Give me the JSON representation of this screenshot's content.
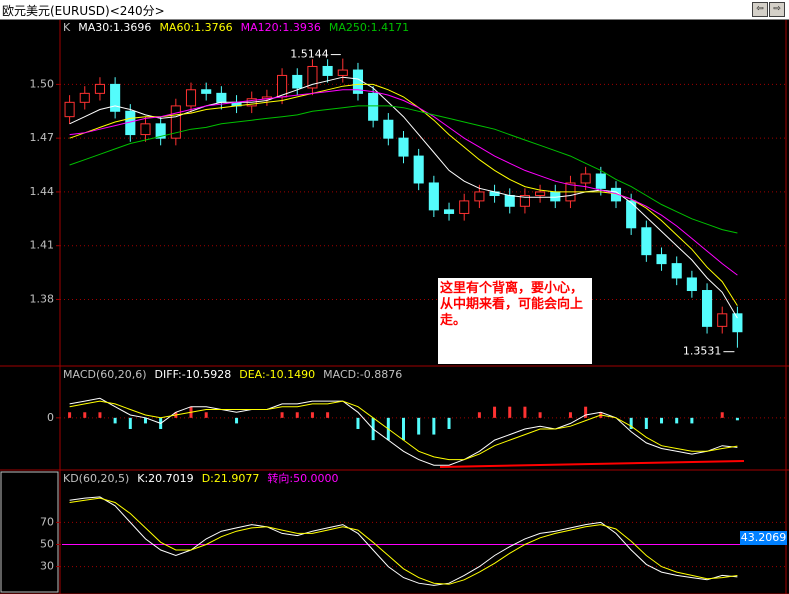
{
  "window": {
    "title": "欧元美元(EURUSD)<240分>"
  },
  "chart_data": [
    {
      "type": "candlestick",
      "name": "K",
      "up_color": "#ff3232",
      "down_color": "#54fcfc",
      "open": [
        1.482,
        1.49,
        1.495,
        1.5,
        1.485,
        1.472,
        1.478,
        1.47,
        1.488,
        1.497,
        1.495,
        1.49,
        1.488,
        1.492,
        1.493,
        1.505,
        1.498,
        1.51,
        1.505,
        1.508,
        1.495,
        1.48,
        1.47,
        1.46,
        1.445,
        1.43,
        1.428,
        1.435,
        1.44,
        1.438,
        1.432,
        1.438,
        1.44,
        1.435,
        1.445,
        1.45,
        1.442,
        1.435,
        1.42,
        1.405,
        1.4,
        1.392,
        1.385,
        1.365,
        1.372
      ],
      "high": [
        1.494,
        1.499,
        1.504,
        1.504,
        1.489,
        1.482,
        1.482,
        1.492,
        1.501,
        1.501,
        1.499,
        1.494,
        1.496,
        1.497,
        1.509,
        1.509,
        1.514,
        1.514,
        1.5144,
        1.512,
        1.499,
        1.484,
        1.474,
        1.464,
        1.449,
        1.434,
        1.439,
        1.444,
        1.444,
        1.442,
        1.442,
        1.444,
        1.444,
        1.449,
        1.454,
        1.454,
        1.446,
        1.439,
        1.424,
        1.409,
        1.404,
        1.396,
        1.389,
        1.376,
        1.376
      ],
      "low": [
        1.478,
        1.486,
        1.491,
        1.481,
        1.468,
        1.468,
        1.466,
        1.466,
        1.484,
        1.491,
        1.486,
        1.484,
        1.484,
        1.488,
        1.489,
        1.494,
        1.494,
        1.501,
        1.501,
        1.491,
        1.476,
        1.466,
        1.456,
        1.441,
        1.426,
        1.424,
        1.424,
        1.431,
        1.434,
        1.428,
        1.428,
        1.434,
        1.431,
        1.431,
        1.441,
        1.438,
        1.431,
        1.416,
        1.401,
        1.396,
        1.388,
        1.381,
        1.361,
        1.361,
        1.3531
      ],
      "close": [
        1.49,
        1.495,
        1.5,
        1.485,
        1.472,
        1.478,
        1.47,
        1.488,
        1.497,
        1.495,
        1.49,
        1.488,
        1.492,
        1.493,
        1.505,
        1.498,
        1.51,
        1.505,
        1.508,
        1.495,
        1.48,
        1.47,
        1.46,
        1.445,
        1.43,
        1.428,
        1.435,
        1.44,
        1.438,
        1.432,
        1.438,
        1.44,
        1.435,
        1.445,
        1.45,
        1.442,
        1.435,
        1.42,
        1.405,
        1.4,
        1.392,
        1.385,
        1.365,
        1.372,
        1.362
      ],
      "series": [
        {
          "name": "MA30:1.3696",
          "color": "#ffffff",
          "values": [
            1.478,
            1.482,
            1.486,
            1.488,
            1.486,
            1.483,
            1.481,
            1.482,
            1.485,
            1.488,
            1.49,
            1.49,
            1.49,
            1.491,
            1.494,
            1.497,
            1.5,
            1.502,
            1.504,
            1.503,
            1.498,
            1.49,
            1.482,
            1.472,
            1.462,
            1.452,
            1.446,
            1.442,
            1.44,
            1.438,
            1.437,
            1.437,
            1.437,
            1.438,
            1.44,
            1.441,
            1.44,
            1.434,
            1.426,
            1.418,
            1.41,
            1.402,
            1.392,
            1.384,
            1.3696
          ]
        },
        {
          "name": "MA60:1.3766",
          "color": "#ffff00",
          "values": [
            1.47,
            1.473,
            1.476,
            1.479,
            1.481,
            1.482,
            1.482,
            1.483,
            1.484,
            1.486,
            1.487,
            1.488,
            1.489,
            1.49,
            1.491,
            1.493,
            1.495,
            1.497,
            1.499,
            1.5,
            1.5,
            1.497,
            1.493,
            1.487,
            1.48,
            1.472,
            1.465,
            1.458,
            1.452,
            1.447,
            1.443,
            1.441,
            1.44,
            1.44,
            1.44,
            1.44,
            1.439,
            1.436,
            1.431,
            1.424,
            1.416,
            1.408,
            1.398,
            1.39,
            1.3766
          ]
        },
        {
          "name": "MA120:1.3936",
          "color": "#ff00ff",
          "values": [
            1.472,
            1.473,
            1.475,
            1.477,
            1.479,
            1.481,
            1.482,
            1.484,
            1.486,
            1.488,
            1.489,
            1.49,
            1.491,
            1.492,
            1.493,
            1.494,
            1.495,
            1.496,
            1.497,
            1.497,
            1.496,
            1.494,
            1.491,
            1.487,
            1.482,
            1.476,
            1.47,
            1.465,
            1.46,
            1.456,
            1.452,
            1.449,
            1.446,
            1.444,
            1.443,
            1.441,
            1.439,
            1.436,
            1.432,
            1.427,
            1.421,
            1.414,
            1.407,
            1.4,
            1.3936
          ]
        },
        {
          "name": "MA250:1.4171",
          "color": "#00c000",
          "values": [
            1.455,
            1.458,
            1.461,
            1.464,
            1.467,
            1.469,
            1.471,
            1.473,
            1.475,
            1.476,
            1.478,
            1.479,
            1.48,
            1.481,
            1.482,
            1.483,
            1.485,
            1.486,
            1.487,
            1.488,
            1.488,
            1.488,
            1.487,
            1.485,
            1.483,
            1.481,
            1.479,
            1.477,
            1.475,
            1.472,
            1.469,
            1.466,
            1.463,
            1.46,
            1.456,
            1.452,
            1.447,
            1.443,
            1.438,
            1.433,
            1.429,
            1.425,
            1.422,
            1.419,
            1.4171
          ]
        }
      ],
      "high_label": "1.5144",
      "low_label": "1.3531",
      "note": "这里有个背离，要小心，从中期来看，可能会向上走。",
      "ylim": [
        1.344,
        1.527
      ],
      "yticks": [
        1.38,
        1.41,
        1.44,
        1.47,
        {
          "value": 1.5,
          "label": "1.50"
        }
      ],
      "grid": true
    },
    {
      "type": "macd",
      "title": "MACD(60,20,6)",
      "series": [
        {
          "name": "DIFF:-10.5928",
          "color": "#ffffff",
          "values": [
            5,
            6,
            7,
            4,
            1,
            0,
            -2,
            2,
            4,
            4,
            3,
            2,
            3,
            3,
            5,
            5,
            6,
            6,
            6,
            2,
            -4,
            -8,
            -12,
            -15,
            -17,
            -17,
            -15,
            -12,
            -8,
            -6,
            -4,
            -3,
            -4,
            -2,
            1,
            2,
            0,
            -5,
            -9,
            -11,
            -12,
            -13,
            -12,
            -10,
            -10.5928
          ]
        },
        {
          "name": "DEA:-10.1490",
          "color": "#ffff00",
          "values": [
            4,
            5,
            6,
            5,
            3,
            1,
            0,
            1,
            2,
            3,
            3,
            3,
            3,
            3,
            4,
            4,
            5,
            5,
            6,
            4,
            0,
            -4,
            -8,
            -12,
            -14,
            -15,
            -15,
            -13,
            -10,
            -8,
            -6,
            -4,
            -4,
            -3,
            -1,
            1,
            0,
            -3,
            -7,
            -10,
            -11,
            -12,
            -12,
            -11,
            -10.149
          ]
        }
      ],
      "histogram": {
        "name": "MACD:-0.8876",
        "up_color": "#ff3232",
        "down_color": "#54fcfc",
        "values": [
          2,
          2,
          2,
          -2,
          -4,
          -2,
          -4,
          2,
          4,
          2,
          0,
          -2,
          0,
          0,
          2,
          2,
          2,
          2,
          0,
          -4,
          -8,
          -8,
          -8,
          -6,
          -6,
          -4,
          0,
          2,
          4,
          4,
          4,
          2,
          0,
          2,
          4,
          2,
          0,
          -4,
          -4,
          -2,
          -2,
          -2,
          0,
          2,
          -0.8876
        ]
      },
      "ylim": [
        -18,
        12.5
      ],
      "yticks": [
        0
      ],
      "grid": true
    },
    {
      "type": "kd",
      "title": "KD(60,20,5)",
      "series": [
        {
          "name": "K:20.7019",
          "color": "#ffffff",
          "values": [
            90,
            92,
            93,
            85,
            70,
            55,
            45,
            40,
            45,
            55,
            62,
            65,
            68,
            66,
            60,
            58,
            62,
            65,
            68,
            60,
            45,
            30,
            20,
            15,
            13,
            15,
            22,
            30,
            40,
            48,
            55,
            60,
            62,
            65,
            68,
            70,
            60,
            45,
            32,
            25,
            22,
            20,
            18,
            22,
            20.7019
          ]
        },
        {
          "name": "D:21.9077",
          "color": "#ffff00",
          "values": [
            88,
            90,
            92,
            88,
            78,
            65,
            52,
            45,
            45,
            50,
            57,
            62,
            65,
            66,
            63,
            60,
            60,
            63,
            66,
            63,
            52,
            40,
            28,
            20,
            15,
            14,
            18,
            25,
            33,
            42,
            50,
            56,
            60,
            63,
            66,
            68,
            64,
            53,
            40,
            30,
            25,
            22,
            19,
            20,
            21.9077
          ]
        }
      ],
      "reference": {
        "name": "转向:50.0000",
        "color": "#ff00ff",
        "value": 50
      },
      "cursor_label": "43.2069",
      "ylim": [
        7,
        102
      ],
      "yticks": [
        30,
        50,
        70
      ],
      "grid": true
    }
  ]
}
